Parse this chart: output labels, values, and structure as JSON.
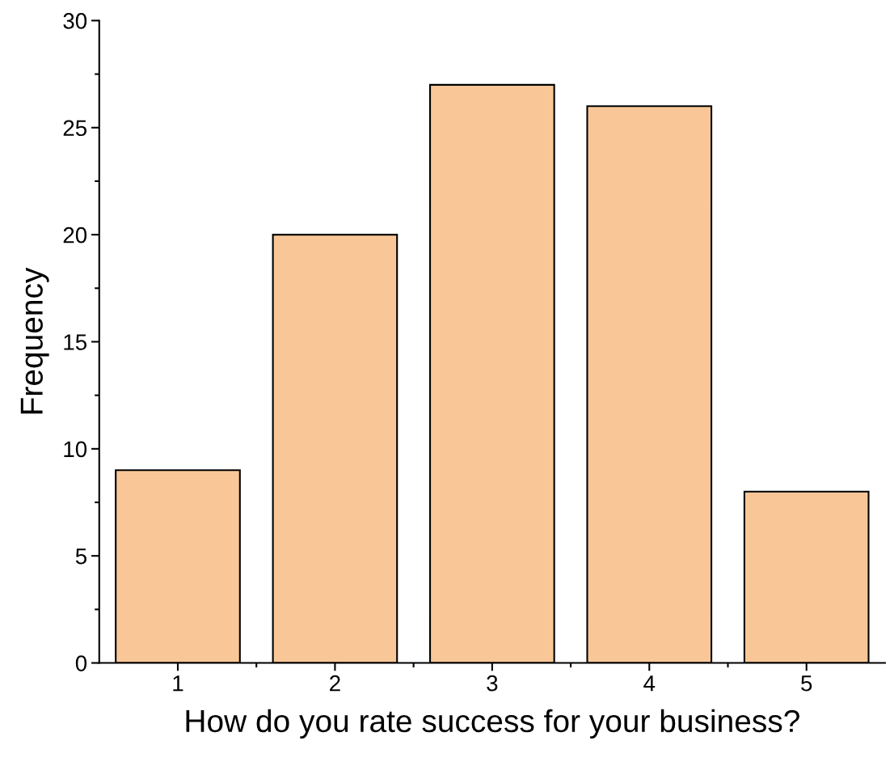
{
  "chart_data": {
    "type": "bar",
    "xlabel": "How do you rate success for your business?",
    "ylabel": "Frequency",
    "categories": [
      "1",
      "2",
      "3",
      "4",
      "5"
    ],
    "values": [
      9,
      20,
      27,
      26,
      8
    ],
    "color": "#f9c797",
    "ylim": [
      0,
      30
    ],
    "yticks": [
      0,
      5,
      10,
      15,
      20,
      25,
      30
    ],
    "grid": false
  }
}
